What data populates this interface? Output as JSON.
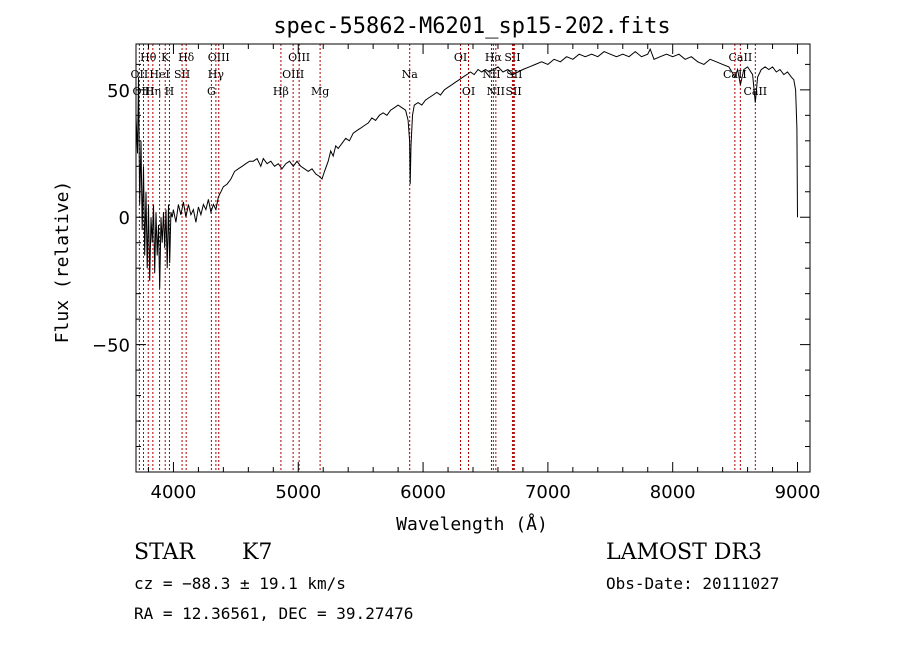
{
  "chart_data": {
    "type": "line",
    "title": "spec-55862-M6201_sp15-202.fits",
    "xlabel": "Wavelength (Å)",
    "ylabel": "Flux (relative)",
    "xlim": [
      3700,
      9100
    ],
    "ylim": [
      -100,
      68
    ],
    "x_ticks": [
      4000,
      5000,
      6000,
      7000,
      8000,
      9000
    ],
    "y_ticks": [
      50,
      0,
      -50
    ],
    "y_tick_labels": [
      "50",
      "0",
      "−50"
    ],
    "series": [
      {
        "name": "flux",
        "points": [
          [
            3700,
            40
          ],
          [
            3712,
            25
          ],
          [
            3720,
            55
          ],
          [
            3730,
            5
          ],
          [
            3740,
            30
          ],
          [
            3750,
            -5
          ],
          [
            3760,
            20
          ],
          [
            3770,
            -15
          ],
          [
            3780,
            10
          ],
          [
            3790,
            -20
          ],
          [
            3800,
            5
          ],
          [
            3810,
            -25
          ],
          [
            3820,
            0
          ],
          [
            3830,
            -10
          ],
          [
            3840,
            5
          ],
          [
            3850,
            -22
          ],
          [
            3860,
            2
          ],
          [
            3870,
            -15
          ],
          [
            3880,
            -3
          ],
          [
            3890,
            -28
          ],
          [
            3900,
            0
          ],
          [
            3910,
            -10
          ],
          [
            3920,
            2
          ],
          [
            3930,
            -12
          ],
          [
            3940,
            3
          ],
          [
            3950,
            -20
          ],
          [
            3960,
            5
          ],
          [
            3970,
            -18
          ],
          [
            3980,
            2
          ],
          [
            3990,
            0
          ],
          [
            4000,
            3
          ],
          [
            4020,
            -2
          ],
          [
            4040,
            5
          ],
          [
            4060,
            1
          ],
          [
            4080,
            6
          ],
          [
            4100,
            0
          ],
          [
            4120,
            5
          ],
          [
            4140,
            1
          ],
          [
            4160,
            3
          ],
          [
            4180,
            -2
          ],
          [
            4200,
            4
          ],
          [
            4220,
            1
          ],
          [
            4240,
            5
          ],
          [
            4260,
            3
          ],
          [
            4280,
            7
          ],
          [
            4300,
            2
          ],
          [
            4320,
            5
          ],
          [
            4340,
            3
          ],
          [
            4360,
            8
          ],
          [
            4380,
            10
          ],
          [
            4400,
            12
          ],
          [
            4430,
            13
          ],
          [
            4460,
            15
          ],
          [
            4490,
            18
          ],
          [
            4520,
            19
          ],
          [
            4550,
            20
          ],
          [
            4580,
            21
          ],
          [
            4610,
            22
          ],
          [
            4640,
            22
          ],
          [
            4670,
            23
          ],
          [
            4700,
            20
          ],
          [
            4720,
            23
          ],
          [
            4750,
            21
          ],
          [
            4780,
            22
          ],
          [
            4810,
            20
          ],
          [
            4840,
            21
          ],
          [
            4870,
            19
          ],
          [
            4900,
            21
          ],
          [
            4930,
            22
          ],
          [
            4960,
            20
          ],
          [
            4990,
            22
          ],
          [
            5020,
            20
          ],
          [
            5050,
            19
          ],
          [
            5080,
            18
          ],
          [
            5110,
            19
          ],
          [
            5140,
            17
          ],
          [
            5170,
            16
          ],
          [
            5190,
            15
          ],
          [
            5210,
            18
          ],
          [
            5240,
            22
          ],
          [
            5260,
            26
          ],
          [
            5280,
            24
          ],
          [
            5300,
            28
          ],
          [
            5320,
            27
          ],
          [
            5350,
            29
          ],
          [
            5380,
            31
          ],
          [
            5410,
            30
          ],
          [
            5440,
            33
          ],
          [
            5470,
            34
          ],
          [
            5500,
            35
          ],
          [
            5530,
            36
          ],
          [
            5560,
            37
          ],
          [
            5590,
            39
          ],
          [
            5620,
            38
          ],
          [
            5650,
            40
          ],
          [
            5680,
            41
          ],
          [
            5710,
            40
          ],
          [
            5740,
            42
          ],
          [
            5770,
            43
          ],
          [
            5800,
            44
          ],
          [
            5830,
            43
          ],
          [
            5860,
            42
          ],
          [
            5880,
            38
          ],
          [
            5892,
            30
          ],
          [
            5897,
            13
          ],
          [
            5903,
            28
          ],
          [
            5915,
            40
          ],
          [
            5930,
            44
          ],
          [
            5960,
            45
          ],
          [
            5990,
            44
          ],
          [
            6020,
            46
          ],
          [
            6050,
            47
          ],
          [
            6080,
            48
          ],
          [
            6110,
            49
          ],
          [
            6140,
            48
          ],
          [
            6170,
            50
          ],
          [
            6200,
            51
          ],
          [
            6230,
            52
          ],
          [
            6260,
            53
          ],
          [
            6290,
            54
          ],
          [
            6320,
            55
          ],
          [
            6350,
            56
          ],
          [
            6380,
            57
          ],
          [
            6410,
            56
          ],
          [
            6440,
            58
          ],
          [
            6470,
            57
          ],
          [
            6500,
            58
          ],
          [
            6530,
            57
          ],
          [
            6563,
            58
          ],
          [
            6600,
            59
          ],
          [
            6640,
            57
          ],
          [
            6680,
            58
          ],
          [
            6720,
            56
          ],
          [
            6760,
            57
          ],
          [
            6800,
            58
          ],
          [
            6850,
            59
          ],
          [
            6900,
            60
          ],
          [
            6950,
            61
          ],
          [
            7000,
            60
          ],
          [
            7050,
            62
          ],
          [
            7100,
            61
          ],
          [
            7150,
            63
          ],
          [
            7200,
            62
          ],
          [
            7250,
            64
          ],
          [
            7300,
            63
          ],
          [
            7350,
            64
          ],
          [
            7400,
            63
          ],
          [
            7450,
            65
          ],
          [
            7500,
            64
          ],
          [
            7550,
            63
          ],
          [
            7600,
            64
          ],
          [
            7650,
            63
          ],
          [
            7700,
            65
          ],
          [
            7750,
            63
          ],
          [
            7800,
            64
          ],
          [
            7820,
            66
          ],
          [
            7850,
            62
          ],
          [
            7900,
            63
          ],
          [
            7950,
            64
          ],
          [
            8000,
            63
          ],
          [
            8050,
            64
          ],
          [
            8100,
            62
          ],
          [
            8150,
            63
          ],
          [
            8200,
            61
          ],
          [
            8250,
            60
          ],
          [
            8300,
            62
          ],
          [
            8350,
            61
          ],
          [
            8400,
            60
          ],
          [
            8450,
            59
          ],
          [
            8498,
            55
          ],
          [
            8520,
            58
          ],
          [
            8542,
            52
          ],
          [
            8570,
            58
          ],
          [
            8600,
            59
          ],
          [
            8640,
            56
          ],
          [
            8662,
            45
          ],
          [
            8680,
            55
          ],
          [
            8710,
            58
          ],
          [
            8740,
            59
          ],
          [
            8770,
            58
          ],
          [
            8800,
            59
          ],
          [
            8830,
            57
          ],
          [
            8860,
            58
          ],
          [
            8890,
            56
          ],
          [
            8920,
            57
          ],
          [
            8950,
            55
          ],
          [
            8970,
            54
          ],
          [
            8985,
            50
          ],
          [
            8995,
            35
          ],
          [
            9000,
            0
          ]
        ]
      }
    ],
    "line_markers": [
      {
        "name": "Hθ",
        "x": 3798,
        "row": 1
      },
      {
        "name": "OII",
        "x": 3727,
        "row": 2
      },
      {
        "name": "OIII",
        "x": 3760,
        "row": 3
      },
      {
        "name": "Hη",
        "x": 3835,
        "row": 3
      },
      {
        "name": "K",
        "x": 3934,
        "row": 1
      },
      {
        "name": "HeI",
        "x": 3889,
        "row": 2
      },
      {
        "name": "H",
        "x": 3968,
        "row": 3
      },
      {
        "name": "SII",
        "x": 4069,
        "row": 2
      },
      {
        "name": "Hδ",
        "x": 4102,
        "row": 1
      },
      {
        "name": "OIII",
        "x": 4363,
        "row": 1
      },
      {
        "name": "Hγ",
        "x": 4340,
        "row": 2
      },
      {
        "name": "G",
        "x": 4304,
        "row": 3
      },
      {
        "name": "Hβ",
        "x": 4861,
        "row": 3
      },
      {
        "name": "OIII",
        "x": 5007,
        "row": 1
      },
      {
        "name": "OIII",
        "x": 4959,
        "row": 2
      },
      {
        "name": "Mg",
        "x": 5175,
        "row": 3
      },
      {
        "name": "Na",
        "x": 5893,
        "row": 2
      },
      {
        "name": "OI",
        "x": 6300,
        "row": 1
      },
      {
        "name": "OI",
        "x": 6364,
        "row": 3
      },
      {
        "name": "Hα",
        "x": 6563,
        "row": 1
      },
      {
        "name": "SII",
        "x": 6716,
        "row": 1
      },
      {
        "name": "NII",
        "x": 6548,
        "row": 2
      },
      {
        "name": "SII",
        "x": 6731,
        "row": 2
      },
      {
        "name": "NII",
        "x": 6583,
        "row": 3
      },
      {
        "name": "SII",
        "x": 6725,
        "row": 3
      },
      {
        "name": "CaII",
        "x": 8542,
        "row": 1
      },
      {
        "name": "CaII",
        "x": 8498,
        "row": 2
      },
      {
        "name": "CaII",
        "x": 8662,
        "row": 3
      }
    ]
  },
  "info": {
    "object_class": "STAR",
    "subclass": "K7",
    "redshift": "cz = −88.3 ± 19.1 km/s",
    "coords": "RA =  12.36561, DEC =  39.27476",
    "survey": "LAMOST DR3",
    "obs_date": "Obs-Date: 20111027"
  }
}
